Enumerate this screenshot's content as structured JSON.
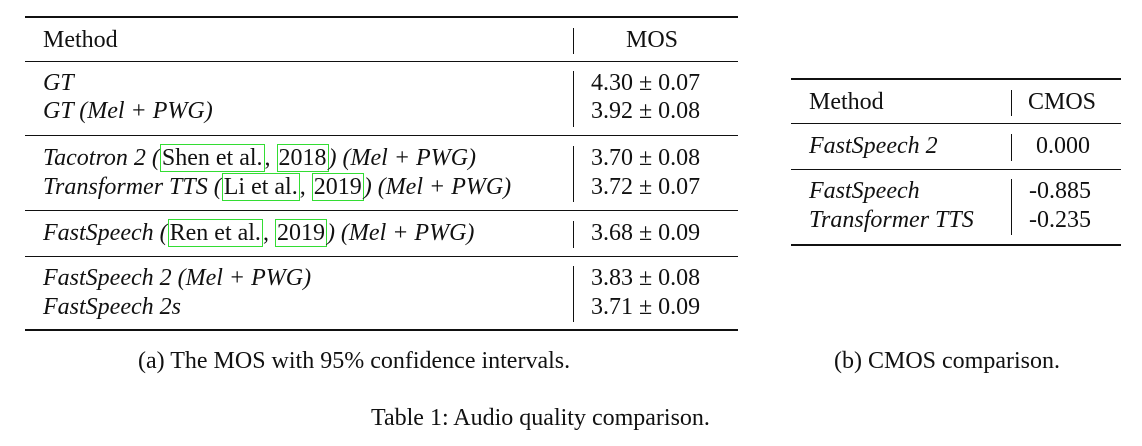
{
  "table_a": {
    "header": {
      "method": "Method",
      "score": "MOS"
    },
    "groups": [
      [
        {
          "method": "GT",
          "score": "4.30 ± 0.07"
        },
        {
          "method": "GT (Mel + PWG)",
          "score": "3.92 ± 0.08"
        }
      ],
      [
        {
          "method_pre": "Tacotron 2 (",
          "cite_author": "Shen et al.",
          "cite_sep": ", ",
          "cite_year": "2018",
          "method_post": ") (Mel + PWG)",
          "score": "3.70 ± 0.08"
        },
        {
          "method_pre": "Transformer TTS (",
          "cite_author": "Li et al.",
          "cite_sep": ", ",
          "cite_year": "2019",
          "method_post": ") (Mel + PWG)",
          "score": "3.72 ± 0.07"
        }
      ],
      [
        {
          "method_pre": "FastSpeech (",
          "cite_author": "Ren et al.",
          "cite_sep": ", ",
          "cite_year": "2019",
          "method_post": ") (Mel + PWG)",
          "score": "3.68 ± 0.09"
        }
      ],
      [
        {
          "method": "FastSpeech 2 (Mel + PWG)",
          "score": "3.83 ± 0.08"
        },
        {
          "method": "FastSpeech 2s",
          "score": "3.71 ± 0.09"
        }
      ]
    ],
    "caption": "(a) The MOS with 95% confidence intervals."
  },
  "table_b": {
    "header": {
      "method": "Method",
      "score": "CMOS"
    },
    "groups": [
      [
        {
          "method": "FastSpeech 2",
          "score": "0.000"
        }
      ],
      [
        {
          "method": "FastSpeech",
          "score": "-0.885"
        },
        {
          "method": "Transformer TTS",
          "score": "-0.235"
        }
      ]
    ],
    "caption": "(b) CMOS comparison."
  },
  "main_caption": "Table 1: Audio quality comparison."
}
